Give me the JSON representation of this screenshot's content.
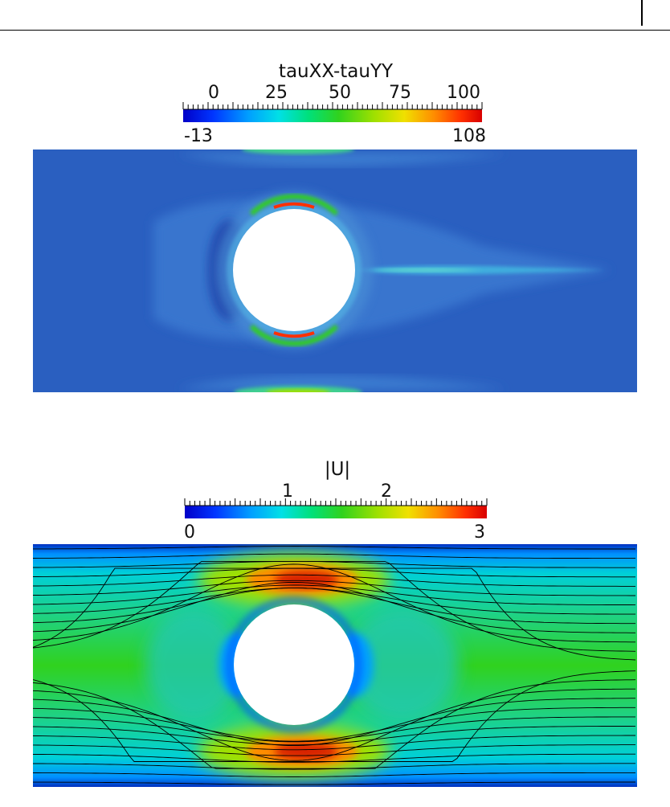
{
  "top_plot": {
    "title": "tauXX-tauYY",
    "ticks": [
      "0",
      "25",
      "50",
      "75",
      "100"
    ],
    "range_min": "-13",
    "range_max": "108"
  },
  "bottom_plot": {
    "title": "|U|",
    "ticks": [
      "1",
      "2"
    ],
    "range_min": "0",
    "range_max": "3"
  },
  "colors": {
    "background": "#2a5fc0",
    "colormap": [
      "#0000c8",
      "#0035ff",
      "#00a0ff",
      "#00e0e6",
      "#00e07a",
      "#30d21e",
      "#a0e000",
      "#f0e000",
      "#ff8c00",
      "#ff3000",
      "#d80000"
    ]
  }
}
